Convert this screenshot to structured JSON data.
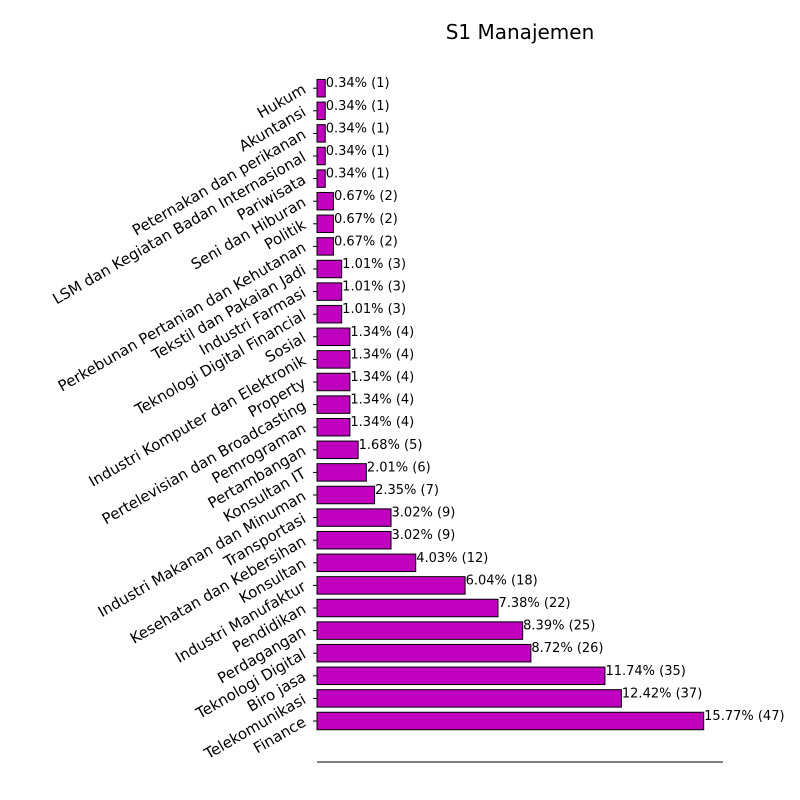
{
  "chart_data": {
    "type": "bar",
    "orientation": "horizontal",
    "title": "S1 Manajemen",
    "xlabel": "",
    "ylabel": "",
    "grid": false,
    "bar_color": "#bf00bf",
    "bar_edge_color": "#000000",
    "categories": [
      "Finance",
      "Telekomunikasi",
      "Biro jasa",
      "Teknologi Digital",
      "Perdagangan",
      "Pendidikan",
      "Industri Manufaktur",
      "Konsultan",
      "Kesehatan dan Kebersihan",
      "Transportasi",
      "Industri Makanan dan Minuman",
      "Konsultan IT",
      "Pertambangan",
      "Pemrograman",
      "Pertelevisian dan Broadcasting",
      "Property",
      "Industri Komputer dan Elektronik",
      "Sosial",
      "Teknologi Digital Financial",
      "Industri Farmasi",
      "Tekstil dan Pakaian Jadi",
      "Perkebunan Pertanian dan Kehutanan",
      "Politik",
      "Seni dan Hiburan",
      "Pariwisata",
      "LSM dan Kegiatan Badan Internasional",
      "Peternakan dan perikanan",
      "Akuntansi",
      "Hukum"
    ],
    "values": [
      47,
      37,
      35,
      26,
      25,
      22,
      18,
      12,
      9,
      9,
      7,
      6,
      5,
      4,
      4,
      4,
      4,
      4,
      3,
      3,
      3,
      2,
      2,
      2,
      1,
      1,
      1,
      1,
      1
    ],
    "data_labels": [
      "15.77% (47)",
      "12.42% (37)",
      "11.74% (35)",
      "8.72% (26)",
      "8.39% (25)",
      "7.38% (22)",
      "6.04% (18)",
      "4.03% (12)",
      "3.02% (9)",
      "3.02% (9)",
      "2.35% (7)",
      "2.01% (6)",
      "1.68% (5)",
      "1.34% (4)",
      "1.34% (4)",
      "1.34% (4)",
      "1.34% (4)",
      "1.34% (4)",
      "1.01% (3)",
      "1.01% (3)",
      "1.01% (3)",
      "0.67% (2)",
      "0.67% (2)",
      "0.67% (2)",
      "0.34% (1)",
      "0.34% (1)",
      "0.34% (1)",
      "0.34% (1)",
      "0.34% (1)"
    ],
    "xlim": [
      0,
      49.35
    ]
  }
}
